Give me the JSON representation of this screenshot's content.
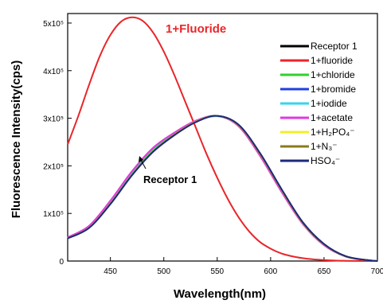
{
  "chart_data": {
    "type": "line",
    "title": "",
    "xlabel": "Wavelength(nm)",
    "ylabel": "Fluorescence Intensity(cps)",
    "xlim": [
      410,
      700
    ],
    "ylim": [
      0,
      520000
    ],
    "xticks": [
      450,
      500,
      550,
      600,
      650,
      700
    ],
    "yticks": [
      {
        "value": 0,
        "label": "0"
      },
      {
        "value": 100000,
        "label": "1x10⁵"
      },
      {
        "value": 200000,
        "label": "2x10⁵"
      },
      {
        "value": 300000,
        "label": "3x10⁵"
      },
      {
        "value": 400000,
        "label": "4x10⁵"
      },
      {
        "value": 500000,
        "label": "5x10⁵"
      }
    ],
    "grid": false,
    "legend_position": "top-right",
    "annotations": [
      {
        "text": "1+Fluoride",
        "color": "#e8262a",
        "x": 490,
        "y": 480000
      },
      {
        "text": "Receptor 1",
        "color": "#000000",
        "x": 490,
        "y": 195000
      }
    ],
    "series": [
      {
        "name": "Receptor 1",
        "color": "#000000",
        "x": [
          410,
          430,
          450,
          470,
          490,
          510,
          530,
          550,
          570,
          590,
          610,
          630,
          650,
          670,
          690,
          700
        ],
        "y": [
          48000,
          70000,
          120000,
          180000,
          230000,
          265000,
          292000,
          305000,
          285000,
          225000,
          150000,
          80000,
          35000,
          10000,
          2000,
          0
        ]
      },
      {
        "name": "1+fluoride",
        "color": "#e8262a",
        "x": [
          410,
          420,
          430,
          440,
          450,
          460,
          470,
          480,
          490,
          500,
          510,
          520,
          530,
          540,
          550,
          560,
          570,
          580,
          590,
          600,
          610,
          620,
          630,
          640,
          650,
          660,
          670,
          680,
          690,
          700
        ],
        "y": [
          245000,
          305000,
          370000,
          430000,
          475000,
          503000,
          512000,
          505000,
          480000,
          440000,
          390000,
          335000,
          280000,
          225000,
          175000,
          130000,
          92000,
          62000,
          40000,
          26000,
          16000,
          10000,
          6000,
          3500,
          2000,
          1000,
          500,
          200,
          50,
          0
        ]
      },
      {
        "name": "1+chloride",
        "color": "#2fd12f",
        "x": [
          410,
          430,
          450,
          470,
          490,
          510,
          530,
          550,
          570,
          590,
          610,
          630,
          650,
          670,
          690,
          700
        ],
        "y": [
          49000,
          72000,
          124000,
          184000,
          234000,
          268000,
          294000,
          305000,
          284000,
          223000,
          148000,
          79000,
          34000,
          10000,
          2000,
          0
        ]
      },
      {
        "name": "1+bromide",
        "color": "#1f3fe0",
        "x": [
          410,
          430,
          450,
          470,
          490,
          510,
          530,
          550,
          570,
          590,
          610,
          630,
          650,
          670,
          690,
          700
        ],
        "y": [
          48000,
          70000,
          121000,
          181000,
          231000,
          266000,
          293000,
          305000,
          286000,
          226000,
          151000,
          81000,
          35000,
          10000,
          2000,
          0
        ]
      },
      {
        "name": "1+iodide",
        "color": "#35d6ee",
        "x": [
          410,
          430,
          450,
          470,
          490,
          510,
          530,
          550,
          570,
          590,
          610,
          630,
          650,
          670,
          690,
          700
        ],
        "y": [
          48500,
          71000,
          122000,
          182000,
          232000,
          266000,
          293000,
          304000,
          285000,
          224000,
          149000,
          80000,
          34000,
          10000,
          2000,
          0
        ]
      },
      {
        "name": "1+acetate",
        "color": "#e038e0",
        "x": [
          410,
          430,
          450,
          470,
          490,
          510,
          530,
          550,
          570,
          590,
          610,
          630,
          650,
          670,
          690,
          700
        ],
        "y": [
          50000,
          74000,
          127000,
          188000,
          238000,
          270000,
          295000,
          305000,
          283000,
          221000,
          146000,
          78000,
          33000,
          9500,
          2000,
          0
        ]
      },
      {
        "name": "1+H₂PO₄⁻",
        "color": "#f2ee2a",
        "x": [
          410,
          430,
          450,
          470,
          490,
          510,
          530,
          550,
          570,
          590,
          610,
          630,
          650,
          670,
          690,
          700
        ],
        "y": [
          48000,
          70500,
          121000,
          181000,
          231000,
          266000,
          293000,
          305000,
          285000,
          225000,
          150000,
          80000,
          35000,
          10000,
          2000,
          0
        ]
      },
      {
        "name": "1+N₃⁻",
        "color": "#8a7a1c",
        "x": [
          410,
          430,
          450,
          470,
          490,
          510,
          530,
          550,
          570,
          590,
          610,
          630,
          650,
          670,
          690,
          700
        ],
        "y": [
          48000,
          70000,
          120500,
          180500,
          230500,
          265500,
          292500,
          305000,
          285500,
          225500,
          150500,
          80500,
          35000,
          10000,
          2000,
          0
        ]
      },
      {
        "name": "HSO₄⁻",
        "color": "#1c2a7a",
        "x": [
          410,
          430,
          450,
          470,
          490,
          510,
          530,
          550,
          570,
          590,
          610,
          630,
          650,
          670,
          690,
          700
        ],
        "y": [
          47500,
          69500,
          119500,
          179500,
          229500,
          264500,
          292000,
          305000,
          286500,
          227000,
          152000,
          82000,
          36000,
          10500,
          2000,
          0
        ]
      }
    ]
  }
}
